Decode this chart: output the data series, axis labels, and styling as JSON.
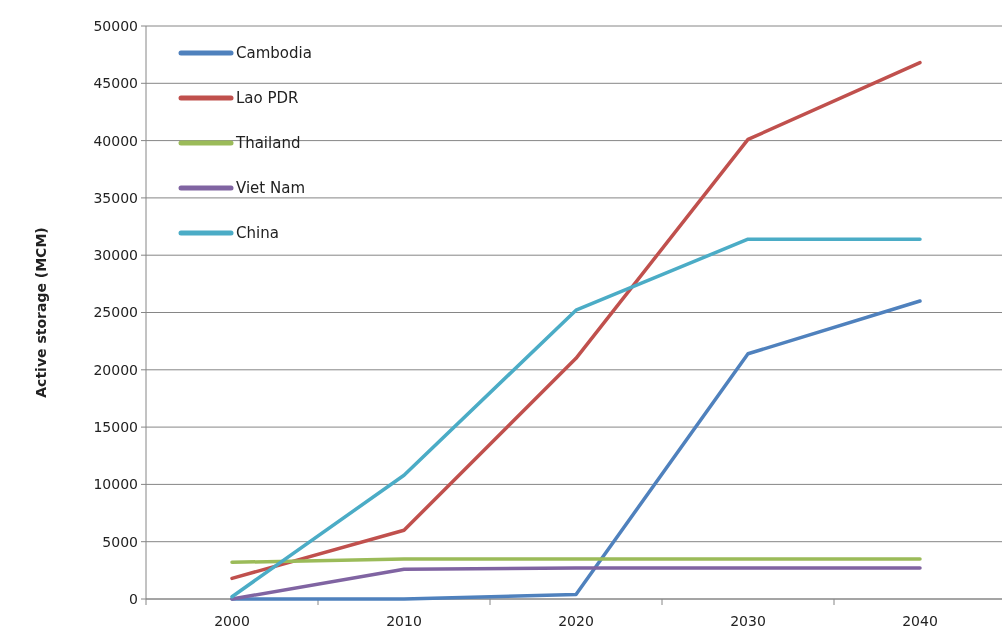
{
  "chart_data": {
    "type": "line",
    "ylabel": "Active storage (MCM)",
    "categories": [
      "2000",
      "2010",
      "2020",
      "2030",
      "2040"
    ],
    "series": [
      {
        "name": "Cambodia",
        "color": "#4f81bd",
        "values": [
          0,
          0,
          400,
          21400,
          26000
        ]
      },
      {
        "name": "Lao PDR",
        "color": "#c0504d",
        "values": [
          1800,
          6000,
          21000,
          40100,
          46800
        ]
      },
      {
        "name": "Thailand",
        "color": "#9bbb59",
        "values": [
          3200,
          3500,
          3500,
          3500,
          3500
        ]
      },
      {
        "name": "Viet Nam",
        "color": "#8064a2",
        "values": [
          0,
          2600,
          2700,
          2700,
          2700
        ]
      },
      {
        "name": "China",
        "color": "#4bacc6",
        "values": [
          200,
          10800,
          25200,
          31400,
          31400
        ]
      }
    ],
    "ylim": [
      0,
      50000
    ],
    "yticks": [
      0,
      5000,
      10000,
      15000,
      20000,
      25000,
      30000,
      35000,
      40000,
      45000,
      50000
    ],
    "grid": "y",
    "legend": "top left",
    "marker": "none",
    "line_style": "solid"
  }
}
